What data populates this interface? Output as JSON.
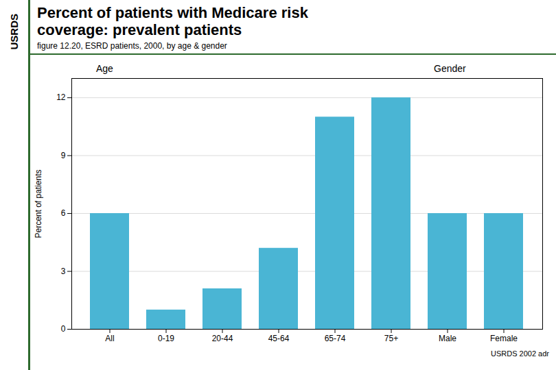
{
  "chart_data": {
    "type": "bar",
    "title": "Percent of patients with Medicare risk\ncoverage: prevalent patients",
    "subtitle": "figure 12.20, ESRD patients, 2000, by age & gender",
    "categories": [
      "All",
      "0-19",
      "20-44",
      "45-64",
      "65-74",
      "75+",
      "Male",
      "Female"
    ],
    "values": [
      6.0,
      1.0,
      2.1,
      4.2,
      11.0,
      12.0,
      6.0,
      6.0
    ],
    "groups": [
      {
        "name": "Age",
        "categories": [
          "All",
          "0-19",
          "20-44",
          "45-64",
          "65-74",
          "75+"
        ]
      },
      {
        "name": "Gender",
        "categories": [
          "Male",
          "Female"
        ]
      }
    ],
    "ylabel": "Percent of patients",
    "ylim": [
      0,
      13
    ],
    "yticks": [
      0,
      3,
      6,
      9,
      12
    ],
    "color": "#4ab5d4",
    "grid": true,
    "annotations": [
      "USRDS",
      "USRDS 2002 adr"
    ]
  }
}
